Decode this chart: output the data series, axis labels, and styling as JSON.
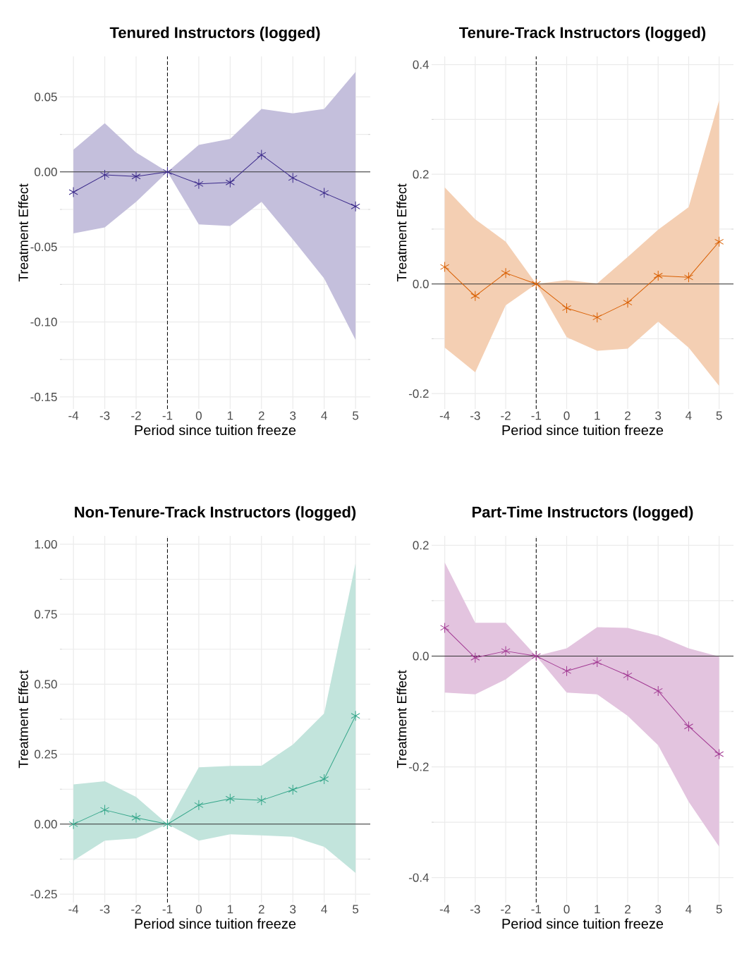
{
  "chart_data": [
    {
      "type": "line",
      "title": "Tenured Instructors (logged)",
      "xlabel": "Period since tuition freeze",
      "ylabel": "Treatment Effect",
      "x": [
        -4,
        -3,
        -2,
        -1,
        0,
        1,
        2,
        3,
        4,
        5
      ],
      "xlim": [
        -4.43,
        5.47
      ],
      "xticks": [
        -4,
        -3,
        -2,
        -1,
        0,
        1,
        2,
        3,
        4,
        5
      ],
      "ylim": [
        -0.158,
        0.077
      ],
      "yticks": [
        {
          "value": -0.15,
          "label": "-0.15"
        },
        {
          "value": -0.1,
          "label": "-0.10"
        },
        {
          "value": -0.05,
          "label": "-0.05"
        },
        {
          "value": 0,
          "label": "0.00"
        },
        {
          "value": 0.05,
          "label": "0.05"
        }
      ],
      "grid": true,
      "marker": "cross",
      "line_style": "solid",
      "series": [
        {
          "color": "#3b2a8a",
          "values": [
            -0.0135,
            -0.002,
            -0.003,
            0,
            -0.008,
            -0.007,
            0.0114,
            -0.004,
            -0.014,
            -0.023
          ],
          "lower": [
            -0.041,
            -0.037,
            -0.02,
            0,
            -0.035,
            -0.036,
            -0.02,
            -0.045,
            -0.071,
            -0.112
          ],
          "upper": [
            0.0148,
            0.0325,
            0.013,
            0,
            0.018,
            0.022,
            0.042,
            0.039,
            0.042,
            0.0667
          ]
        }
      ],
      "ref_lines": [
        {
          "axis": "x",
          "value": -1,
          "line_style": "dashed",
          "color": "#000000"
        },
        {
          "axis": "y",
          "value": 0,
          "line_style": "solid",
          "color": "#333333"
        }
      ]
    },
    {
      "type": "line",
      "title": "Tenure-Track Instructors (logged)",
      "xlabel": "Period since tuition freeze",
      "ylabel": "Treatment Effect",
      "x": [
        -4,
        -3,
        -2,
        -1,
        0,
        1,
        2,
        3,
        4,
        5
      ],
      "xlim": [
        -4.43,
        5.47
      ],
      "xticks": [
        -4,
        -3,
        -2,
        -1,
        0,
        1,
        2,
        3,
        4,
        5
      ],
      "ylim": [
        -0.228,
        0.415
      ],
      "yticks": [
        {
          "value": -0.2,
          "label": "-0.2"
        },
        {
          "value": 0,
          "label": "0.0"
        },
        {
          "value": 0.2,
          "label": "0.2"
        },
        {
          "value": 0.4,
          "label": "0.4"
        }
      ],
      "grid": true,
      "marker": "cross",
      "line_style": "solid",
      "series": [
        {
          "color": "#d95f02",
          "values": [
            0.031,
            -0.022,
            0.02,
            0,
            -0.044,
            -0.061,
            -0.034,
            0.015,
            0.012,
            0.077
          ],
          "lower": [
            -0.116,
            -0.161,
            -0.039,
            0,
            -0.097,
            -0.122,
            -0.118,
            -0.069,
            -0.116,
            -0.186
          ],
          "upper": [
            0.176,
            0.118,
            0.077,
            0,
            0.007,
            0.001,
            0.049,
            0.099,
            0.14,
            0.335
          ]
        }
      ],
      "ref_lines": [
        {
          "axis": "x",
          "value": -1,
          "line_style": "dashed",
          "color": "#000000"
        },
        {
          "axis": "y",
          "value": 0,
          "line_style": "solid",
          "color": "#333333"
        }
      ]
    },
    {
      "type": "line",
      "title": "Non-Tenure-Track Instructors (logged)",
      "xlabel": "Period since tuition freeze",
      "ylabel": "Treatment Effect",
      "x": [
        -4,
        -3,
        -2,
        -1,
        0,
        1,
        2,
        3,
        4,
        5
      ],
      "xlim": [
        -4.43,
        5.47
      ],
      "xticks": [
        -4,
        -3,
        -2,
        -1,
        0,
        1,
        2,
        3,
        4,
        5
      ],
      "ylim": [
        -0.28,
        1.03
      ],
      "yticks": [
        {
          "value": -0.25,
          "label": "-0.25"
        },
        {
          "value": 0,
          "label": "0.00"
        },
        {
          "value": 0.25,
          "label": "0.25"
        },
        {
          "value": 0.5,
          "label": "0.50"
        },
        {
          "value": 0.75,
          "label": "0.75"
        },
        {
          "value": 1,
          "label": "1.00"
        }
      ],
      "grid": true,
      "marker": "cross",
      "line_style": "solid",
      "series": [
        {
          "color": "#35a68a",
          "values": [
            0.0,
            0.051,
            0.023,
            0,
            0.068,
            0.091,
            0.085,
            0.123,
            0.161,
            0.387
          ],
          "lower": [
            -0.13,
            -0.059,
            -0.051,
            0,
            -0.059,
            -0.036,
            -0.04,
            -0.045,
            -0.081,
            -0.174
          ],
          "upper": [
            0.142,
            0.153,
            0.097,
            0,
            0.203,
            0.208,
            0.209,
            0.284,
            0.396,
            0.932
          ]
        }
      ],
      "ref_lines": [
        {
          "axis": "x",
          "value": -1,
          "line_style": "dashed",
          "color": "#000000"
        },
        {
          "axis": "y",
          "value": 0,
          "line_style": "solid",
          "color": "#333333"
        }
      ]
    },
    {
      "type": "line",
      "title": "Part-Time Instructors (logged)",
      "xlabel": "Period since tuition freeze",
      "ylabel": "Treatment Effect",
      "x": [
        -4,
        -3,
        -2,
        -1,
        0,
        1,
        2,
        3,
        4,
        5
      ],
      "xlim": [
        -4.43,
        5.47
      ],
      "xticks": [
        -4,
        -3,
        -2,
        -1,
        0,
        1,
        2,
        3,
        4,
        5
      ],
      "ylim": [
        -0.445,
        0.217
      ],
      "yticks": [
        {
          "value": -0.4,
          "label": "-0.4"
        },
        {
          "value": -0.2,
          "label": "-0.2"
        },
        {
          "value": 0,
          "label": "0.0"
        },
        {
          "value": 0.2,
          "label": "0.2"
        }
      ],
      "grid": true,
      "marker": "cross",
      "line_style": "solid",
      "series": [
        {
          "color": "#a23a93",
          "values": [
            0.051,
            -0.003,
            0.009,
            0,
            -0.027,
            -0.011,
            -0.035,
            -0.063,
            -0.127,
            -0.177
          ],
          "lower": [
            -0.066,
            -0.069,
            -0.042,
            0,
            -0.066,
            -0.069,
            -0.108,
            -0.161,
            -0.263,
            -0.344
          ],
          "upper": [
            0.169,
            0.06,
            0.06,
            0,
            0.014,
            0.052,
            0.051,
            0.037,
            0.014,
            -0.001
          ]
        }
      ],
      "ref_lines": [
        {
          "axis": "x",
          "value": -1,
          "line_style": "dashed",
          "color": "#000000"
        },
        {
          "axis": "y",
          "value": 0,
          "line_style": "solid",
          "color": "#333333"
        }
      ]
    }
  ]
}
